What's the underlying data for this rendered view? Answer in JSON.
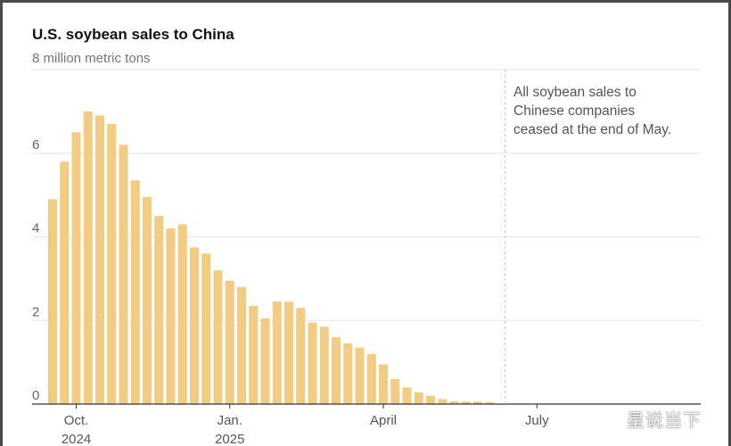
{
  "chart_data": {
    "type": "bar",
    "title": "U.S. soybean sales to China",
    "ylabel": "8 million metric tons",
    "ylim": [
      0,
      8
    ],
    "y_ticks": [
      "6",
      "4",
      "2",
      "0"
    ],
    "y_tick_values": [
      6,
      4,
      2,
      0
    ],
    "grid": true,
    "x_ticks": [
      {
        "label": "Oct.",
        "sub": "2024",
        "week": 2
      },
      {
        "label": "Jan.",
        "sub": "2025",
        "week": 15
      },
      {
        "label": "April",
        "sub": "",
        "week": 28
      },
      {
        "label": "July",
        "sub": "",
        "week": 41
      }
    ],
    "total_weeks": 55,
    "values": [
      4.9,
      5.8,
      6.5,
      7.0,
      6.9,
      6.7,
      6.2,
      5.35,
      4.95,
      4.5,
      4.2,
      4.3,
      3.75,
      3.6,
      3.2,
      2.95,
      2.8,
      2.35,
      2.05,
      2.45,
      2.45,
      2.3,
      1.95,
      1.85,
      1.6,
      1.45,
      1.35,
      1.2,
      0.95,
      0.6,
      0.4,
      0.28,
      0.2,
      0.12,
      0.07,
      0.06,
      0.06,
      0.05
    ],
    "cutoff_week": 38.7,
    "annotation": [
      "All soybean sales to",
      "Chinese companies",
      "ceased at the end of May."
    ],
    "bar_color": "#f2cc82"
  },
  "watermark": "星说当下"
}
